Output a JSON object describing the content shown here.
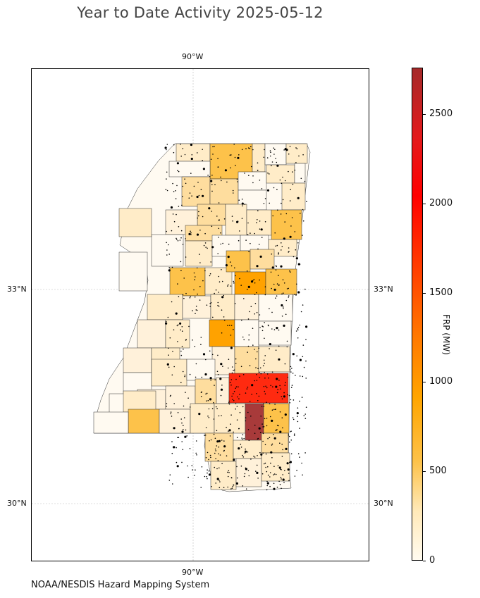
{
  "title": "Year to Date Activity 2025-05-12",
  "credit": "NOAA/NESDIS Hazard Mapping System",
  "map": {
    "region": "Mississippi",
    "lon_labels_top": [
      "90°W"
    ],
    "lon_labels_bottom": [
      "90°W"
    ],
    "lat_labels_left": [
      "33°N",
      "30°N"
    ],
    "lat_labels_right": [
      "33°N",
      "30°N"
    ],
    "gridlines": true
  },
  "colorbar": {
    "label": "FRP (MW)",
    "ticks": [
      "0",
      "500",
      "1000",
      "1500",
      "2000",
      "2500"
    ],
    "min": 0,
    "max": 2760,
    "colors": [
      "#fffbf0",
      "#fdc24a",
      "#ffa500",
      "#ff3b00",
      "#ff0000",
      "#a52a2a"
    ]
  },
  "legend_colors": {
    "very_low": "#fffaf1",
    "low": "#ffecc8",
    "light": "#fedd9e",
    "mid": "#fdc24a",
    "orange": "#ffa200",
    "high": "#ff2a10",
    "highest": "#a83a3a"
  }
}
